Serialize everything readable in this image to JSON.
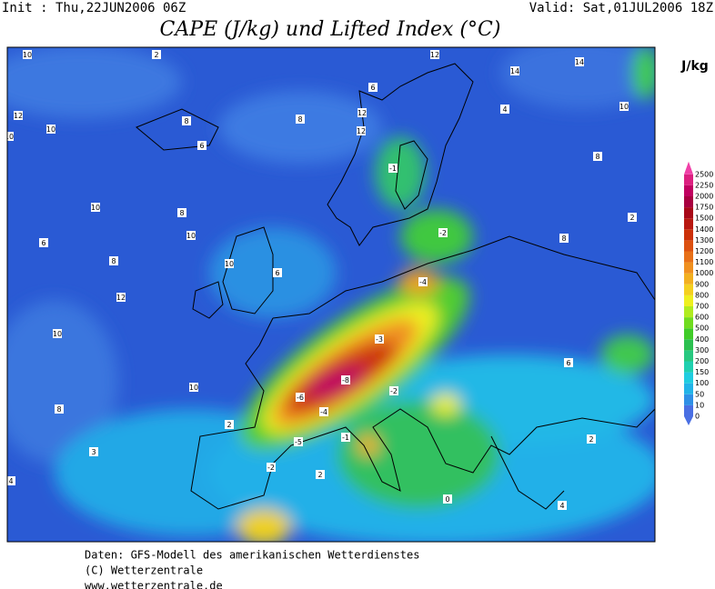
{
  "header": {
    "init": "Init : Thu,22JUN2006 06Z",
    "valid": "Valid: Sat,01JUL2006 18Z",
    "title": "CAPE (J/kg) und Lifted Index (°C)"
  },
  "colorbar": {
    "unit": "J/kg",
    "levels": [
      0,
      10,
      50,
      100,
      150,
      200,
      300,
      400,
      500,
      600,
      700,
      800,
      900,
      1000,
      1100,
      1200,
      1300,
      1400,
      1500,
      1750,
      2000,
      2250,
      2500
    ],
    "colors": [
      "#4a6fe3",
      "#2f90e6",
      "#22b4e8",
      "#20cde0",
      "#20d0b0",
      "#28c880",
      "#2cc050",
      "#40cc28",
      "#70dc20",
      "#b0ec20",
      "#eef020",
      "#f4d020",
      "#f2b020",
      "#f09020",
      "#e87018",
      "#dc5010",
      "#cc3008",
      "#b81810",
      "#a80818",
      "#a80040",
      "#c00060",
      "#dc2080",
      "#f040a8"
    ]
  },
  "map": {
    "labels": [
      "10",
      "2",
      "12",
      "14",
      "14",
      "12",
      "10",
      "8",
      "12",
      "6",
      "10",
      "8",
      "6",
      "12",
      "-1",
      "4",
      "10",
      "8",
      "10",
      "8",
      "10",
      "6",
      "8",
      "12",
      "10",
      "-4",
      "-8",
      "-6",
      "-4",
      "-2",
      "-1",
      "-5",
      "2",
      "10",
      "8",
      "3",
      "4",
      "0",
      "-2",
      "2",
      "4",
      "2",
      "8",
      "6",
      "10",
      "-2",
      "-3",
      "6",
      "2"
    ]
  },
  "footer": {
    "lines": [
      "Daten: GFS-Modell des amerikanischen Wetterdienstes",
      "(C) Wetterzentrale",
      "www.wetterzentrale.de"
    ]
  }
}
